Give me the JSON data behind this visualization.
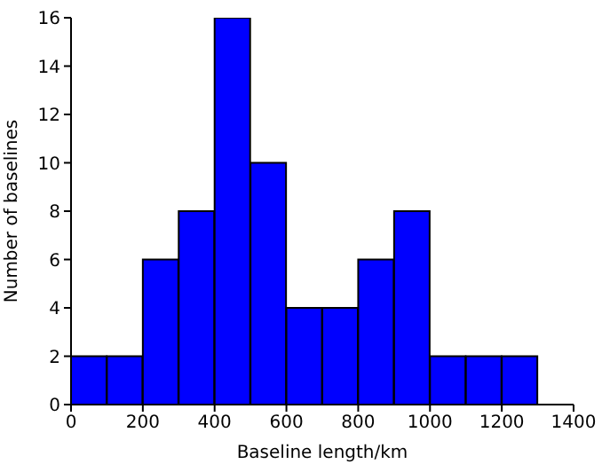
{
  "chart_data": {
    "type": "histogram",
    "xlabel": "Baseline length/km",
    "ylabel": "Number of baselines",
    "bins": [
      0,
      100,
      200,
      300,
      400,
      500,
      600,
      700,
      800,
      900,
      1000,
      1100,
      1200,
      1300
    ],
    "values": [
      2,
      2,
      6,
      8,
      16,
      10,
      4,
      4,
      6,
      8,
      2,
      2,
      2
    ],
    "color": "#0000ff",
    "xlim": [
      0,
      1400
    ],
    "xticks": [
      0,
      200,
      400,
      600,
      800,
      1000,
      1200,
      1400
    ],
    "ylim": [
      0,
      16
    ],
    "yticks": [
      0,
      2,
      4,
      6,
      8,
      10,
      12,
      14,
      16
    ],
    "grid": false
  }
}
